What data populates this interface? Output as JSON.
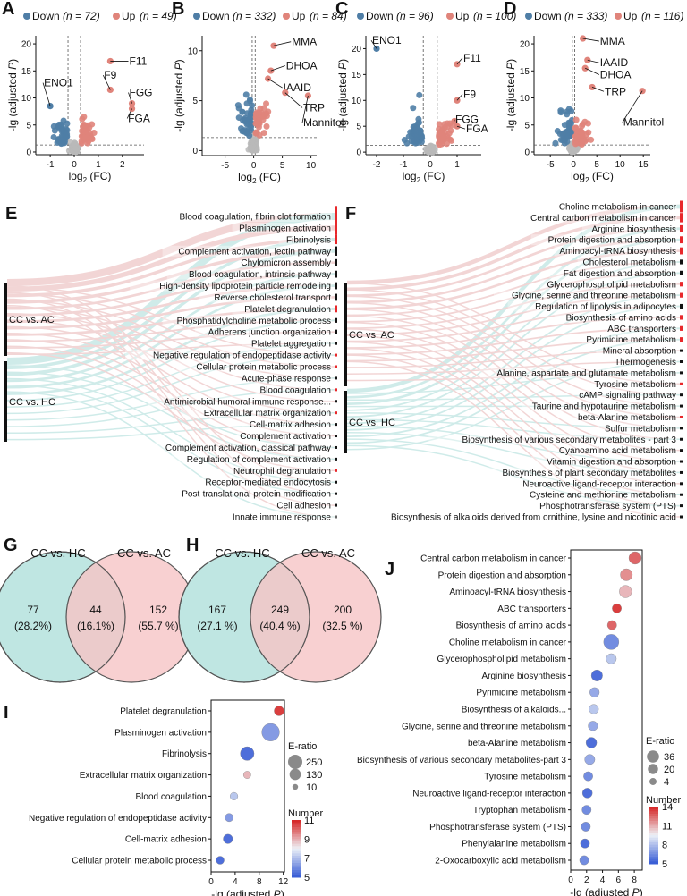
{
  "colors": {
    "down": "#4f7ea6",
    "up": "#e0847b",
    "ns": "#b8b8b8",
    "pink_flow": "#e8b4b4",
    "teal_flow": "#a9dcd8",
    "venn_left": "#bfe6e2",
    "venn_right": "#f6c4c6",
    "bar_red": "#e8282b"
  },
  "chart_data": [
    {
      "panel": "A",
      "type": "scatter",
      "legend": {
        "down_label": "Down",
        "down_n": "(n = 72)",
        "up_label": "Up",
        "up_n": "(n = 49)"
      },
      "xlim": [
        -1.6,
        2.9
      ],
      "ylim": [
        -0.5,
        21.5
      ],
      "xticks": [
        -1,
        0,
        1,
        2
      ],
      "yticks": [
        0,
        5,
        10,
        15,
        20
      ],
      "xlabel": "log2 (FC)",
      "ylabel": "-lg (adjusted P)",
      "threshold_x": [
        -0.26,
        0.26
      ],
      "threshold_y": 1.3,
      "labels": [
        {
          "text": "ENO1",
          "x": -1.0,
          "y": 8.5,
          "tx": -1.3,
          "ty": 12.8
        },
        {
          "text": "F11",
          "x": 1.5,
          "y": 16.8,
          "tx": 2.25,
          "ty": 16.8
        },
        {
          "text": "F9",
          "x": 1.5,
          "y": 11.5,
          "tx": 1.2,
          "ty": 14.2
        },
        {
          "text": "FGG",
          "x": 2.4,
          "y": 9.0,
          "tx": 2.25,
          "ty": 11.0
        },
        {
          "text": "FGA",
          "x": 2.4,
          "y": 8.0,
          "tx": 2.2,
          "ty": 6.2
        }
      ]
    },
    {
      "panel": "B",
      "type": "scatter",
      "legend": {
        "down_label": "Down",
        "down_n": "(n = 332)",
        "up_label": "Up",
        "up_n": "(n = 84)"
      },
      "xlim": [
        -9,
        11
      ],
      "ylim": [
        -0.5,
        11.5
      ],
      "xticks": [
        -5,
        0,
        5,
        10
      ],
      "yticks": [
        0,
        5,
        10
      ],
      "xlabel": "log2 (FC)",
      "ylabel": "-lg (adjusted P)",
      "threshold_x": [
        -0.26,
        0.26
      ],
      "threshold_y": 1.3,
      "labels": [
        {
          "text": "MMA",
          "x": 3.5,
          "y": 10.5,
          "tx": 6.5,
          "ty": 10.9
        },
        {
          "text": "DHOA",
          "x": 3.0,
          "y": 8.0,
          "tx": 5.5,
          "ty": 8.5
        },
        {
          "text": "IAAID",
          "x": 2.5,
          "y": 7.2,
          "tx": 5.0,
          "ty": 6.3
        },
        {
          "text": "TRP",
          "x": 5.5,
          "y": 5.8,
          "tx": 8.5,
          "ty": 4.3
        },
        {
          "text": "Mannitol",
          "x": 9.5,
          "y": 5.5,
          "tx": 8.5,
          "ty": 2.8
        }
      ]
    },
    {
      "panel": "C",
      "type": "scatter",
      "legend": {
        "down_label": "Down",
        "down_n": "(n = 96)",
        "up_label": "Up",
        "up_n": "(n = 100)"
      },
      "xlim": [
        -2.4,
        1.9
      ],
      "ylim": [
        -0.5,
        22.5
      ],
      "xticks": [
        -2,
        -1,
        0,
        1
      ],
      "yticks": [
        0,
        5,
        10,
        15,
        20
      ],
      "xlabel": "log2 (FC)",
      "ylabel": "-lg (adjusted P)",
      "threshold_x": [
        -0.26,
        0.26
      ],
      "threshold_y": 1.3,
      "labels": [
        {
          "text": "ENO1",
          "x": -2.0,
          "y": 20.0,
          "tx": -2.2,
          "ty": 21.6
        },
        {
          "text": "F11",
          "x": 1.0,
          "y": 17.0,
          "tx": 1.2,
          "ty": 18.2
        },
        {
          "text": "F9",
          "x": 1.0,
          "y": 10.0,
          "tx": 1.2,
          "ty": 11.2
        },
        {
          "text": "FGG",
          "x": 0.9,
          "y": 6.0,
          "tx": 0.9,
          "ty": 6.3
        },
        {
          "text": "FGA",
          "x": 1.0,
          "y": 5.0,
          "tx": 1.3,
          "ty": 4.5
        }
      ]
    },
    {
      "panel": "D",
      "type": "scatter",
      "legend": {
        "down_label": "Down",
        "down_n": "(n = 333)",
        "up_label": "Up",
        "up_n": "(n = 116)"
      },
      "xlim": [
        -8.5,
        16.5
      ],
      "ylim": [
        -0.5,
        21.5
      ],
      "xticks": [
        -5,
        0,
        5,
        10,
        15
      ],
      "yticks": [
        0,
        5,
        10,
        15,
        20
      ],
      "xlabel": "log2 (FC)",
      "ylabel": "-lg (adjusted P)",
      "threshold_x": [
        -0.26,
        0.26
      ],
      "threshold_y": 1.3,
      "labels": [
        {
          "text": "MMA",
          "x": 2.0,
          "y": 21.0,
          "tx": 5.5,
          "ty": 20.5
        },
        {
          "text": "IAAID",
          "x": 3.0,
          "y": 17.0,
          "tx": 5.5,
          "ty": 16.5
        },
        {
          "text": "DHOA",
          "x": 2.5,
          "y": 15.5,
          "tx": 5.5,
          "ty": 14.3
        },
        {
          "text": "TRP",
          "x": 4.0,
          "y": 12.0,
          "tx": 6.5,
          "ty": 11.2
        },
        {
          "text": "Mannitol",
          "x": 14.8,
          "y": 11.3,
          "tx": 10.5,
          "ty": 5.5
        }
      ]
    },
    {
      "panel": "E",
      "type": "sankey",
      "sources": [
        "CC vs. AC",
        "CC vs. HC"
      ],
      "targets": [
        {
          "label": "Blood coagulation, fibrin clot formation",
          "weight": 9,
          "flag": "red"
        },
        {
          "label": "Plasminogen activation",
          "weight": 6,
          "flag": "red"
        },
        {
          "label": "Fibrinolysis",
          "weight": 4,
          "flag": "red"
        },
        {
          "label": "Complement activation, lectin pathway",
          "weight": 4,
          "flag": "black"
        },
        {
          "label": "Chylomicron assembly",
          "weight": 3,
          "flag": "black"
        },
        {
          "label": "Blood coagulation, intrinsic pathway",
          "weight": 3,
          "flag": "black"
        },
        {
          "label": "High-density lipoprotein particle remodeling",
          "weight": 3,
          "flag": "black"
        },
        {
          "label": "Reverse cholesterol transport",
          "weight": 3,
          "flag": "black"
        },
        {
          "label": "Platelet degranulation",
          "weight": 3,
          "flag": "red"
        },
        {
          "label": "Phosphatidylcholine metabolic process",
          "weight": 2,
          "flag": "black"
        },
        {
          "label": "Adherens junction organization",
          "weight": 2,
          "flag": "black"
        },
        {
          "label": "Platelet aggregation",
          "weight": 1,
          "flag": "black"
        },
        {
          "label": "Negative regulation of endopeptidase activity",
          "weight": 1,
          "flag": "red"
        },
        {
          "label": "Cellular protein metabolic process",
          "weight": 1,
          "flag": "red"
        },
        {
          "label": "Acute-phase response",
          "weight": 1,
          "flag": "black"
        },
        {
          "label": "Blood coagulation",
          "weight": 1,
          "flag": "red"
        },
        {
          "label": "Antimicrobial humoral immune response...",
          "weight": 1,
          "flag": "black"
        },
        {
          "label": "Extracellular matrix organization",
          "weight": 1,
          "flag": "red"
        },
        {
          "label": "Cell-matrix adhesion",
          "weight": 1,
          "flag": "black"
        },
        {
          "label": "Complement activation",
          "weight": 1,
          "flag": "black"
        },
        {
          "label": "Complement activation, classical pathway",
          "weight": 1,
          "flag": "black"
        },
        {
          "label": "Regulation of complement activation",
          "weight": 1,
          "flag": "black"
        },
        {
          "label": "Neutrophil degranulation",
          "weight": 1,
          "flag": "red"
        },
        {
          "label": "Receptor-mediated endocytosis",
          "weight": 1,
          "flag": "black"
        },
        {
          "label": "Post-translational protein modification",
          "weight": 1,
          "flag": "black"
        },
        {
          "label": "Cell adhesion",
          "weight": 1,
          "flag": "black"
        },
        {
          "label": "Innate immune response",
          "weight": 1,
          "flag": "black"
        }
      ]
    },
    {
      "panel": "F",
      "type": "sankey",
      "sources": [
        "CC vs. AC",
        "CC vs. HC"
      ],
      "targets": [
        {
          "label": "Choline metabolism in cancer",
          "weight": 5,
          "flag": "red"
        },
        {
          "label": "Central carbon metabolism in cancer",
          "weight": 4,
          "flag": "red"
        },
        {
          "label": "Arginine biosynthesis",
          "weight": 3,
          "flag": "red"
        },
        {
          "label": "Protein digestion and absorption",
          "weight": 3,
          "flag": "red"
        },
        {
          "label": "Aminoacyl-tRNA biosynthesis",
          "weight": 3,
          "flag": "red"
        },
        {
          "label": "Cholesterol metabolism",
          "weight": 2,
          "flag": "black"
        },
        {
          "label": "Fat digestion and absorption",
          "weight": 2,
          "flag": "black"
        },
        {
          "label": "Glycerophospholipid metabolism",
          "weight": 2,
          "flag": "red"
        },
        {
          "label": "Glycine, serine and threonine metabolism",
          "weight": 2,
          "flag": "red"
        },
        {
          "label": "Regulation of lipolysis in adipocytes",
          "weight": 2,
          "flag": "black"
        },
        {
          "label": "Biosynthesis of amino acids",
          "weight": 2,
          "flag": "red"
        },
        {
          "label": "ABC transporters",
          "weight": 2,
          "flag": "red"
        },
        {
          "label": "Pyrimidine metabolism",
          "weight": 2,
          "flag": "red"
        },
        {
          "label": "Mineral absorption",
          "weight": 1,
          "flag": "black"
        },
        {
          "label": "Thermogenesis",
          "weight": 1,
          "flag": "black"
        },
        {
          "label": "Alanine, aspartate and glutamate metabolism",
          "weight": 1,
          "flag": "black"
        },
        {
          "label": "Tyrosine metabolism",
          "weight": 1,
          "flag": "red"
        },
        {
          "label": "cAMP signaling pathway",
          "weight": 1,
          "flag": "black"
        },
        {
          "label": "Taurine and hypotaurine metabolism",
          "weight": 1,
          "flag": "black"
        },
        {
          "label": "beta-Alanine metabolism",
          "weight": 1,
          "flag": "red"
        },
        {
          "label": "Sulfur metabolism",
          "weight": 1,
          "flag": "black"
        },
        {
          "label": "Biosynthesis of various secondary metabolites - part 3",
          "weight": 1,
          "flag": "black"
        },
        {
          "label": "Cyanoamino acid metabolism",
          "weight": 1,
          "flag": "black"
        },
        {
          "label": "Vitamin digestion and absorption",
          "weight": 1,
          "flag": "black"
        },
        {
          "label": "Biosynthesis of plant secondary metabolites",
          "weight": 1,
          "flag": "black"
        },
        {
          "label": "Neuroactive ligand-receptor interaction",
          "weight": 1,
          "flag": "black"
        },
        {
          "label": "Cysteine and methionine metabolism",
          "weight": 1,
          "flag": "black"
        },
        {
          "label": "Phosphotransferase system (PTS)",
          "weight": 1,
          "flag": "black"
        },
        {
          "label": "Biosynthesis of alkaloids derived from ornithine, lysine and nicotinic acid",
          "weight": 1,
          "flag": "black"
        }
      ]
    },
    {
      "panel": "G",
      "type": "venn",
      "left_title": "CC vs. HC",
      "right_title": "CC vs. AC",
      "left_only": "77",
      "left_pct": "(28.2%)",
      "both": "44",
      "both_pct": "(16.1%)",
      "right_only": "152",
      "right_pct": "(55.7 %)"
    },
    {
      "panel": "H",
      "type": "venn",
      "left_title": "CC vs. HC",
      "right_title": "CC vs. AC",
      "left_only": "167",
      "left_pct": "(27.1 %)",
      "both": "249",
      "both_pct": "(40.4 %)",
      "right_only": "200",
      "right_pct": "(32.5 %)"
    },
    {
      "panel": "I",
      "type": "scatter",
      "xlabel": "-lg (adjusted P)",
      "xlim": [
        0,
        12.2
      ],
      "xticks": [
        0,
        4,
        8,
        12
      ],
      "size_title": "E-ratio",
      "size_legend": [
        250,
        130,
        10
      ],
      "color_title": "Number",
      "color_ticks": [
        11,
        9,
        7,
        5
      ],
      "color_range": [
        5,
        11
      ],
      "terms": [
        {
          "label": "Platelet degranulation",
          "x": 11.3,
          "eratio": 40,
          "number": 11
        },
        {
          "label": "Plasminogen activation",
          "x": 9.9,
          "eratio": 240,
          "number": 6
        },
        {
          "label": "Fibrinolysis",
          "x": 6.0,
          "eratio": 120,
          "number": 5
        },
        {
          "label": "Extracellular matrix organization",
          "x": 6.0,
          "eratio": 12,
          "number": 9
        },
        {
          "label": "Blood coagulation",
          "x": 3.8,
          "eratio": 15,
          "number": 7
        },
        {
          "label": "Negative regulation of endopeptidase activity",
          "x": 3.0,
          "eratio": 20,
          "number": 6
        },
        {
          "label": "Cell-matrix adhesion",
          "x": 2.8,
          "eratio": 35,
          "number": 5
        },
        {
          "label": "Cellular protein metabolic process",
          "x": 1.5,
          "eratio": 18,
          "number": 5
        }
      ]
    },
    {
      "panel": "J",
      "type": "scatter",
      "xlabel": "-lg (adjusted P)",
      "xlim": [
        0,
        9
      ],
      "xticks": [
        0,
        2,
        4,
        6,
        8
      ],
      "size_title": "E-ratio",
      "size_legend": [
        36,
        20,
        4
      ],
      "color_title": "Number",
      "color_ticks": [
        14,
        11,
        8,
        5
      ],
      "color_range": [
        5,
        14
      ],
      "terms": [
        {
          "label": "Central carbon metabolism in cancer",
          "x": 8.1,
          "eratio": 18,
          "number": 13
        },
        {
          "label": "Protein digestion and absorption",
          "x": 7.0,
          "eratio": 16,
          "number": 12
        },
        {
          "label": "Aminoacyl-tRNA biosynthesis",
          "x": 6.9,
          "eratio": 18,
          "number": 11
        },
        {
          "label": "ABC transporters",
          "x": 5.8,
          "eratio": 5,
          "number": 14
        },
        {
          "label": "Biosynthesis of amino acids",
          "x": 5.2,
          "eratio": 5,
          "number": 13
        },
        {
          "label": "Choline metabolism in cancer",
          "x": 5.1,
          "eratio": 36,
          "number": 6
        },
        {
          "label": "Glycerophospholipid metabolism",
          "x": 5.1,
          "eratio": 8,
          "number": 8
        },
        {
          "label": "Arginine biosynthesis",
          "x": 3.3,
          "eratio": 12,
          "number": 5
        },
        {
          "label": "Pyrimidine metabolism",
          "x": 3.0,
          "eratio": 6,
          "number": 7
        },
        {
          "label": "Biosynthesis of alkaloids...",
          "x": 2.9,
          "eratio": 6,
          "number": 8
        },
        {
          "label": "Glycine, serine and threonine metabolism",
          "x": 2.8,
          "eratio": 6,
          "number": 7
        },
        {
          "label": "beta-Alanine metabolism",
          "x": 2.6,
          "eratio": 10,
          "number": 5
        },
        {
          "label": "Biosynthesis of various secondary metabolites-part 3",
          "x": 2.4,
          "eratio": 8,
          "number": 7
        },
        {
          "label": "Tyrosine metabolism",
          "x": 2.2,
          "eratio": 5,
          "number": 6
        },
        {
          "label": "Neuroactive ligand-receptor interaction",
          "x": 2.1,
          "eratio": 7,
          "number": 5
        },
        {
          "label": "Tryptophan metabolism",
          "x": 2.0,
          "eratio": 5,
          "number": 6
        },
        {
          "label": "Phosphotransferase system (PTS)",
          "x": 1.9,
          "eratio": 5,
          "number": 6
        },
        {
          "label": "Phenylalanine metabolism",
          "x": 1.8,
          "eratio": 5,
          "number": 5
        },
        {
          "label": "2-Oxocarboxylic acid metabolism",
          "x": 1.7,
          "eratio": 5,
          "number": 6
        }
      ]
    }
  ]
}
